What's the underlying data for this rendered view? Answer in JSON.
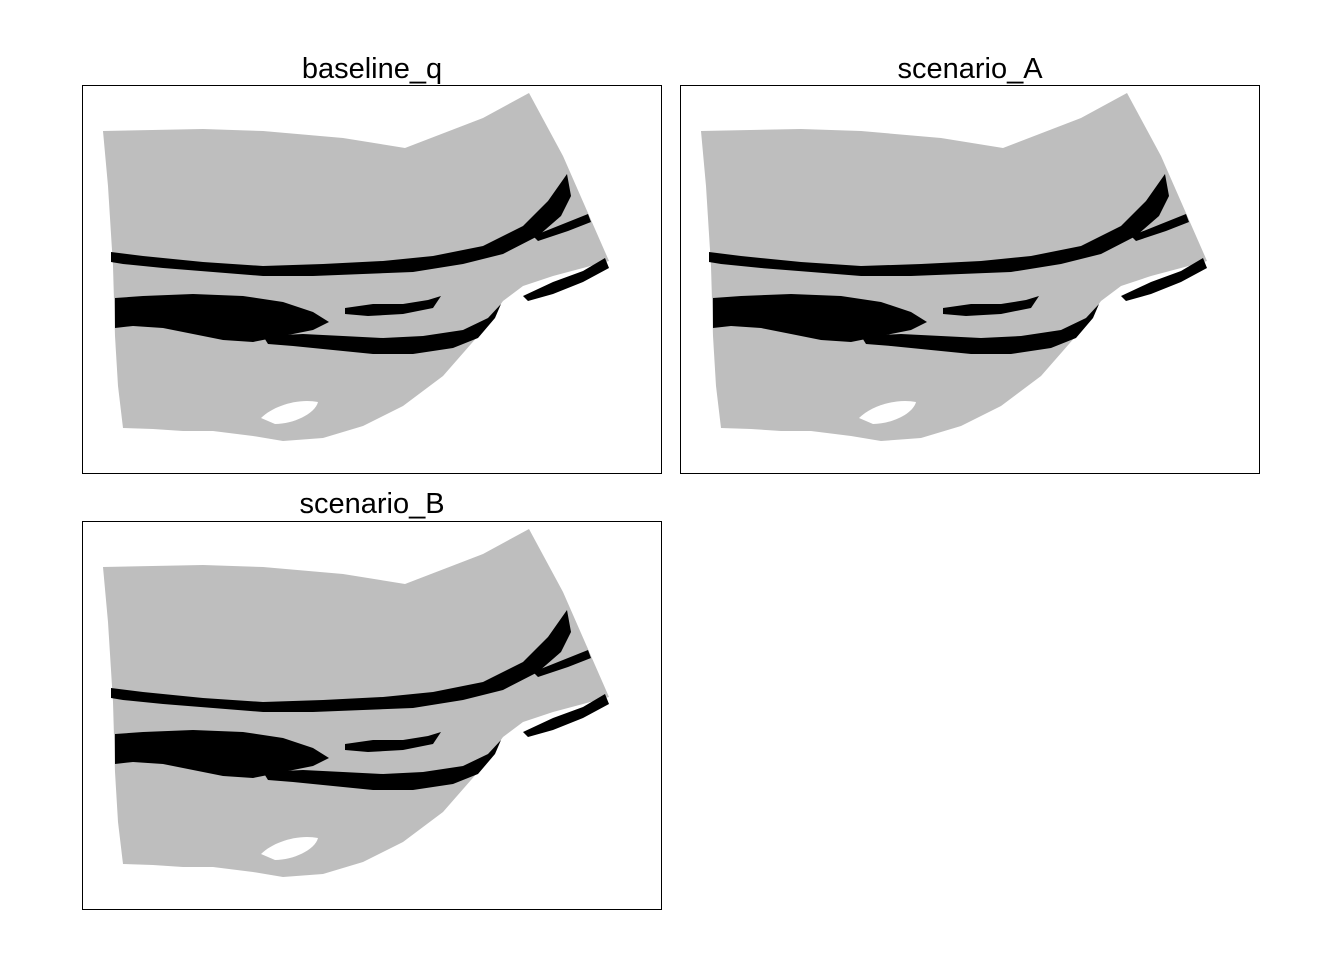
{
  "colors": {
    "land": "#bebebe",
    "channel": "#000000",
    "background": "#ffffff",
    "frame": "#000000"
  },
  "panels": [
    {
      "title": "baseline_q"
    },
    {
      "title": "scenario_A"
    },
    {
      "title": "scenario_B"
    }
  ]
}
